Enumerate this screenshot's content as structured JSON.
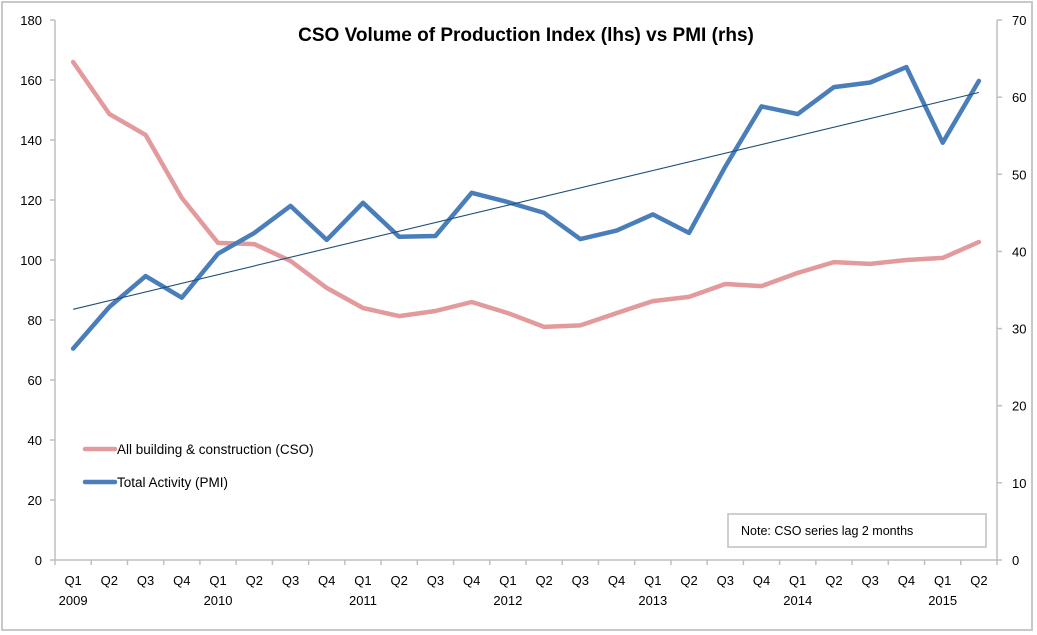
{
  "chart_data": {
    "type": "line",
    "title": "CSO Volume of Production Index (lhs) vs PMI (rhs)",
    "xlabel": "",
    "ylabel_left": "",
    "ylabel_right": "",
    "categories": [
      {
        "quarter": "Q1",
        "year": "2009"
      },
      {
        "quarter": "Q2",
        "year": ""
      },
      {
        "quarter": "Q3",
        "year": ""
      },
      {
        "quarter": "Q4",
        "year": ""
      },
      {
        "quarter": "Q1",
        "year": "2010"
      },
      {
        "quarter": "Q2",
        "year": ""
      },
      {
        "quarter": "Q3",
        "year": ""
      },
      {
        "quarter": "Q4",
        "year": ""
      },
      {
        "quarter": "Q1",
        "year": "2011"
      },
      {
        "quarter": "Q2",
        "year": ""
      },
      {
        "quarter": "Q3",
        "year": ""
      },
      {
        "quarter": "Q4",
        "year": ""
      },
      {
        "quarter": "Q1",
        "year": "2012"
      },
      {
        "quarter": "Q2",
        "year": ""
      },
      {
        "quarter": "Q3",
        "year": ""
      },
      {
        "quarter": "Q4",
        "year": ""
      },
      {
        "quarter": "Q1",
        "year": "2013"
      },
      {
        "quarter": "Q2",
        "year": ""
      },
      {
        "quarter": "Q3",
        "year": ""
      },
      {
        "quarter": "Q4",
        "year": ""
      },
      {
        "quarter": "Q1",
        "year": "2014"
      },
      {
        "quarter": "Q2",
        "year": ""
      },
      {
        "quarter": "Q3",
        "year": ""
      },
      {
        "quarter": "Q4",
        "year": ""
      },
      {
        "quarter": "Q1",
        "year": "2015"
      },
      {
        "quarter": "Q2",
        "year": ""
      }
    ],
    "y_left": {
      "min": 0,
      "max": 180,
      "step": 20,
      "ticks": [
        "0",
        "20",
        "40",
        "60",
        "80",
        "100",
        "120",
        "140",
        "160",
        "180"
      ]
    },
    "y_right": {
      "min": 0,
      "max": 70,
      "step": 10,
      "ticks": [
        "0",
        "10",
        "20",
        "30",
        "40",
        "50",
        "60",
        "70"
      ]
    },
    "grid": false,
    "series": [
      {
        "name": "All building & construction (CSO)",
        "axis": "left",
        "color": "#E39A9C",
        "values": [
          166,
          148.7,
          141.7,
          120.7,
          105.7,
          105.3,
          99.7,
          90.7,
          84,
          81.3,
          83,
          86,
          82.3,
          77.7,
          78.2,
          82.3,
          86.3,
          87.7,
          92,
          91.3,
          95.7,
          99.3,
          98.7,
          100,
          100.7,
          106
        ]
      },
      {
        "name": "Total Activity (PMI)",
        "axis": "right",
        "color": "#4A7EBB",
        "values": [
          27.4,
          32.8,
          36.8,
          34.0,
          39.7,
          42.4,
          45.9,
          41.5,
          46.3,
          41.9,
          42.0,
          47.6,
          46.4,
          45.0,
          41.6,
          42.7,
          44.8,
          42.4,
          51.0,
          58.8,
          57.8,
          61.3,
          61.9,
          63.9,
          54.1,
          62.1
        ]
      }
    ],
    "trendline": {
      "of_series": "Total Activity (PMI)",
      "axis": "right",
      "type": "linear",
      "color": "#1F4E79",
      "start_value": 32.5,
      "end_value": 60.6
    },
    "legend": {
      "placement": "lower-left inside plot",
      "entries": [
        "All building & construction (CSO)",
        "Total Activity (PMI)"
      ]
    },
    "annotations": [
      {
        "text": "Note: CSO series lag 2 months",
        "placement": "bottom-right inside plot, boxed"
      }
    ]
  }
}
